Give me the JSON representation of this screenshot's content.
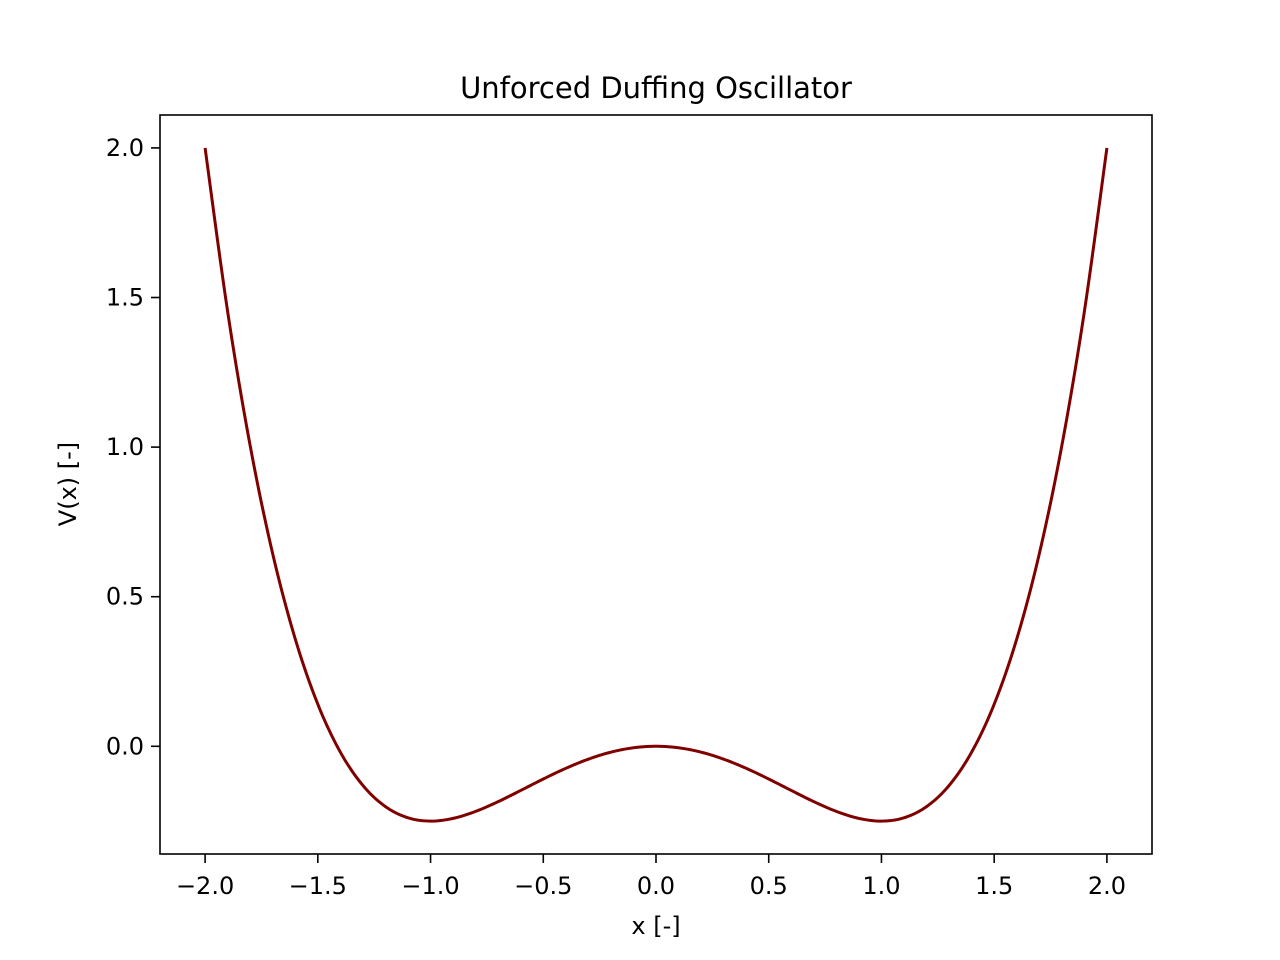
{
  "chart_data": {
    "type": "line",
    "title": "Unforced Duffing Oscillator",
    "xlabel": "x [-]",
    "ylabel": "V(x) [-]",
    "xlim": [
      -2.2,
      2.2
    ],
    "ylim": [
      -0.36,
      2.11
    ],
    "x_ticks": [
      -2.0,
      -1.5,
      -1.0,
      -0.5,
      0.0,
      0.5,
      1.0,
      1.5,
      2.0
    ],
    "x_tick_labels": [
      "−2.0",
      "−1.5",
      "−1.0",
      "−0.5",
      "0.0",
      "0.5",
      "1.0",
      "1.5",
      "2.0"
    ],
    "y_ticks": [
      0.0,
      0.5,
      1.0,
      1.5,
      2.0
    ],
    "y_tick_labels": [
      "0.0",
      "0.5",
      "1.0",
      "1.5",
      "2.0"
    ],
    "grid": false,
    "legend": false,
    "series": [
      {
        "color": "#800000",
        "x": [
          -2.0,
          -1.9,
          -1.8,
          -1.7,
          -1.6,
          -1.5,
          -1.4,
          -1.3,
          -1.2,
          -1.1,
          -1.0,
          -0.9,
          -0.8,
          -0.7,
          -0.6,
          -0.5,
          -0.4,
          -0.3,
          -0.2,
          -0.1,
          0.0,
          0.1,
          0.2,
          0.3,
          0.4,
          0.5,
          0.6,
          0.7,
          0.8,
          0.9,
          1.0,
          1.1,
          1.2,
          1.3,
          1.4,
          1.5,
          1.6,
          1.7,
          1.8,
          1.9,
          2.0
        ],
        "y": [
          2.0,
          1.453,
          1.0044,
          0.643,
          0.3584,
          0.1406,
          -0.0196,
          -0.131,
          -0.2016,
          -0.239,
          -0.25,
          -0.241,
          -0.2176,
          -0.185,
          -0.1476,
          -0.1094,
          -0.0736,
          -0.043,
          -0.0196,
          -0.005,
          0.0,
          -0.005,
          -0.0196,
          -0.043,
          -0.0736,
          -0.1094,
          -0.1476,
          -0.185,
          -0.2176,
          -0.241,
          -0.25,
          -0.239,
          -0.2016,
          -0.131,
          -0.0196,
          0.1406,
          0.3584,
          0.643,
          1.0044,
          1.453,
          2.0
        ]
      }
    ]
  }
}
